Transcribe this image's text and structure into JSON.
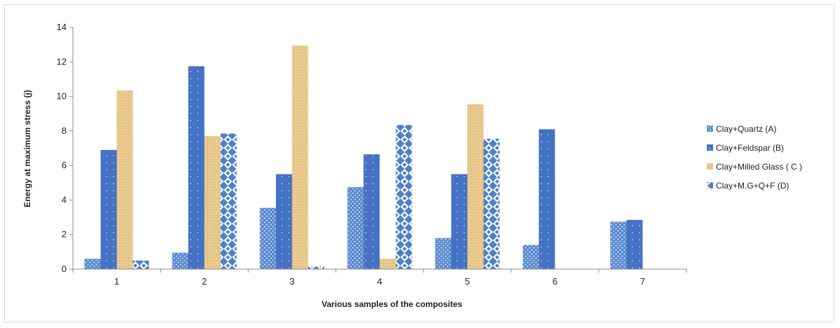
{
  "chart_data": {
    "type": "bar",
    "title": "",
    "xlabel": "Various samples of the composites",
    "ylabel": "Energy at maximum stress (j)",
    "categories": [
      "1",
      "2",
      "3",
      "4",
      "5",
      "6",
      "7"
    ],
    "ylim": [
      0,
      14
    ],
    "yticks": [
      "0",
      "2",
      "4",
      "6",
      "8",
      "10",
      "12",
      "14"
    ],
    "grid": false,
    "legend_position": "right",
    "series": [
      {
        "name": "Clay+Quartz (A)",
        "color": "#4e81c8",
        "values": [
          0.6,
          0.95,
          3.55,
          4.75,
          1.8,
          1.4,
          2.75
        ]
      },
      {
        "name": "Clay+Feldspar (B)",
        "color": "#4472c4",
        "values": [
          6.9,
          11.75,
          5.5,
          6.65,
          5.5,
          8.1,
          2.85
        ]
      },
      {
        "name": "Clay+Milled Glass ( C )",
        "color": "#e8c88a",
        "values": [
          10.35,
          7.7,
          12.95,
          0.6,
          9.55,
          0,
          0
        ]
      },
      {
        "name": "Clay+M.G+Q+F (D)",
        "color": "#4e81c8",
        "values": [
          0.5,
          7.85,
          0.15,
          8.35,
          7.55,
          0,
          0
        ]
      }
    ]
  }
}
